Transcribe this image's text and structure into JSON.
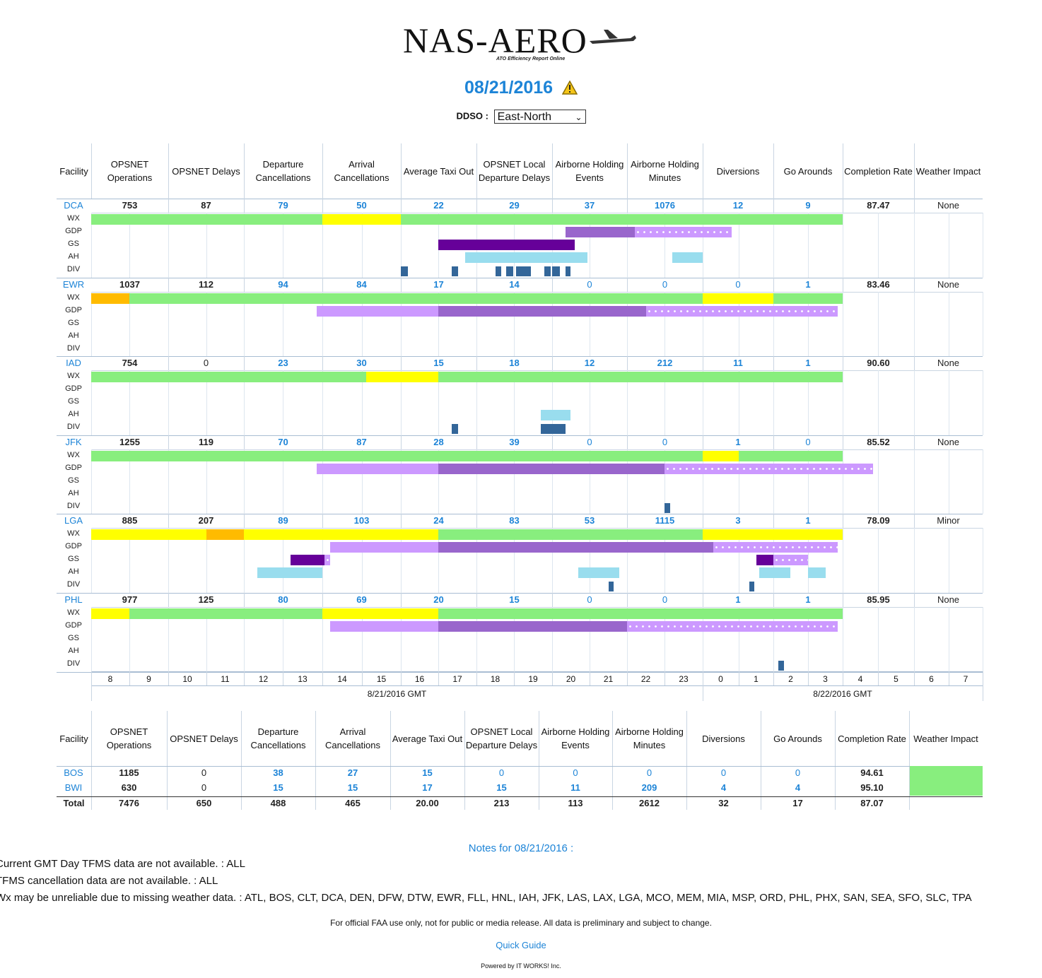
{
  "logo": {
    "text": "NAS-AERO",
    "subtitle": "ATO Efficiency Report Online"
  },
  "report_date": "08/21/2016",
  "ddso": {
    "label": "DDSO :",
    "selected": "East-North"
  },
  "columns": [
    "Facility",
    "OPSNET Operations",
    "OPSNET Delays",
    "Departure Cancellations",
    "Arrival Cancellations",
    "Average Taxi Out",
    "OPSNET Local Departure Delays",
    "Airborne Holding Events",
    "Airborne Holding Minutes",
    "Diversions",
    "Go Arounds",
    "Completion Rate",
    "Weather Impact"
  ],
  "row_labels": [
    "WX",
    "GDP",
    "GS",
    "AH",
    "DIV"
  ],
  "colors": {
    "green": "#88ee7e",
    "yellow": "#ffff00",
    "orange": "#ffbb00",
    "gdp_light": "#cc99ff",
    "gdp_dark": "#9966cc",
    "gs": "#660099",
    "ah": "#99ddee",
    "div": "#336699",
    "link": "#1d84d7"
  },
  "facilities": [
    {
      "code": "DCA",
      "values": [
        "753",
        "87",
        "79",
        "50",
        "22",
        "29",
        "37",
        "1076",
        "12",
        "9",
        "87.47"
      ],
      "weather": "None"
    },
    {
      "code": "EWR",
      "values": [
        "1037",
        "112",
        "94",
        "84",
        "17",
        "14",
        "0",
        "0",
        "0",
        "1",
        "83.46"
      ],
      "weather": "None"
    },
    {
      "code": "IAD",
      "values": [
        "754",
        "0",
        "23",
        "30",
        "15",
        "18",
        "12",
        "212",
        "11",
        "1",
        "90.60"
      ],
      "weather": "None"
    },
    {
      "code": "JFK",
      "values": [
        "1255",
        "119",
        "70",
        "87",
        "28",
        "39",
        "0",
        "0",
        "1",
        "0",
        "85.52"
      ],
      "weather": "None"
    },
    {
      "code": "LGA",
      "values": [
        "885",
        "207",
        "89",
        "103",
        "24",
        "83",
        "53",
        "1115",
        "3",
        "1",
        "78.09"
      ],
      "weather": "Minor"
    },
    {
      "code": "PHL",
      "values": [
        "977",
        "125",
        "80",
        "69",
        "20",
        "15",
        "0",
        "0",
        "1",
        "1",
        "85.95"
      ],
      "weather": "None"
    }
  ],
  "hours": [
    "8",
    "9",
    "10",
    "11",
    "12",
    "13",
    "14",
    "15",
    "16",
    "17",
    "18",
    "19",
    "20",
    "21",
    "22",
    "23",
    "0",
    "1",
    "2",
    "3",
    "4",
    "5",
    "6",
    "7"
  ],
  "gmt_labels": [
    "8/21/2016 GMT",
    "8/22/2016 GMT"
  ],
  "summary": {
    "rows": [
      {
        "code": "BOS",
        "values": [
          "1185",
          "0",
          "38",
          "27",
          "15",
          "0",
          "0",
          "0",
          "0",
          "0",
          "94.61"
        ]
      },
      {
        "code": "BWI",
        "values": [
          "630",
          "0",
          "15",
          "15",
          "17",
          "15",
          "11",
          "209",
          "4",
          "4",
          "95.10"
        ]
      }
    ],
    "total": {
      "label": "Total",
      "values": [
        "7476",
        "650",
        "488",
        "465",
        "20.00",
        "213",
        "113",
        "2612",
        "32",
        "17",
        "87.07"
      ]
    }
  },
  "notes": {
    "title": "Notes for 08/21/2016 :",
    "items": [
      "Current GMT Day TFMS data are not available. : ALL",
      "TFMS cancellation data are not available. : ALL",
      "Wx may be unreliable due to missing weather data. : ATL, BOS, CLT, DCA, DEN, DFW, DTW, EWR, FLL, HNL, IAH, JFK, LAS, LAX, LGA, MCO, MEM, MIA, MSP, ORD, PHL, PHX, SAN, SEA, SFO, SLC, TPA"
    ]
  },
  "footer": {
    "disclaimer": "For official FAA use only, not for public or media release. All data is preliminary and subject to change.",
    "guide_link": "Quick Guide",
    "powered": "Powered by IT WORKS! Inc."
  }
}
